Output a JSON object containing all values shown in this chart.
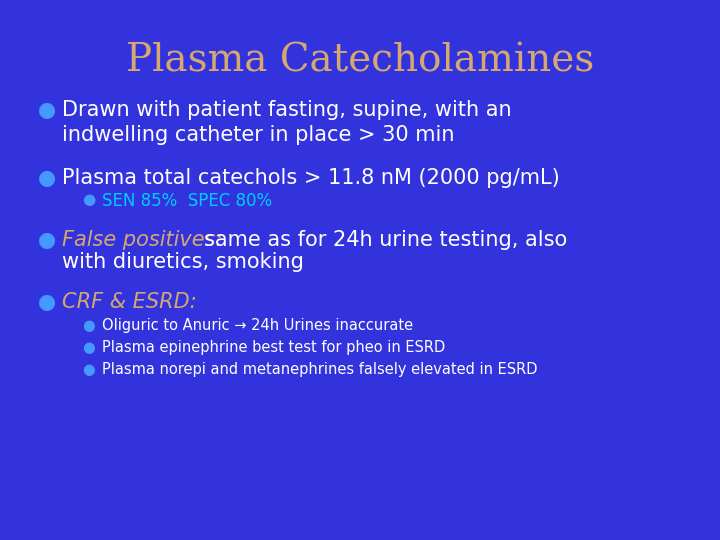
{
  "title": "Plasma Catecholamines",
  "title_color": "#D4A870",
  "background_color": "#3333DD",
  "bullet_color": "#4499FF",
  "white_text_color": "#FFFFFF",
  "yellow_text_color": "#D4A870",
  "cyan_text_color": "#00CCFF",
  "title_fontsize": 28,
  "body_fontsize": 15,
  "sub_fontsize": 12,
  "subsub_fontsize": 10.5,
  "bullet1": "Drawn with patient fasting, supine, with an\nindwelling catheter in place > 30 min",
  "bullet2": "Plasma total catechols > 11.8 nM (2000 pg/mL)",
  "sub_bullet2": "SEN 85%  SPEC 80%",
  "bullet3_prefix": "False positives: ",
  "bullet3_suffix": "same as for 24h urine testing, also\nwith diuretics, smoking",
  "bullet4": "CRF & ESRD:",
  "sub_bullet4a": "Oliguric to Anuric → 24h Urines inaccurate",
  "sub_bullet4b": "Plasma epinephrine best test for pheo in ESRD",
  "sub_bullet4c": "Plasma norepi and metanephrines falsely elevated in ESRD"
}
